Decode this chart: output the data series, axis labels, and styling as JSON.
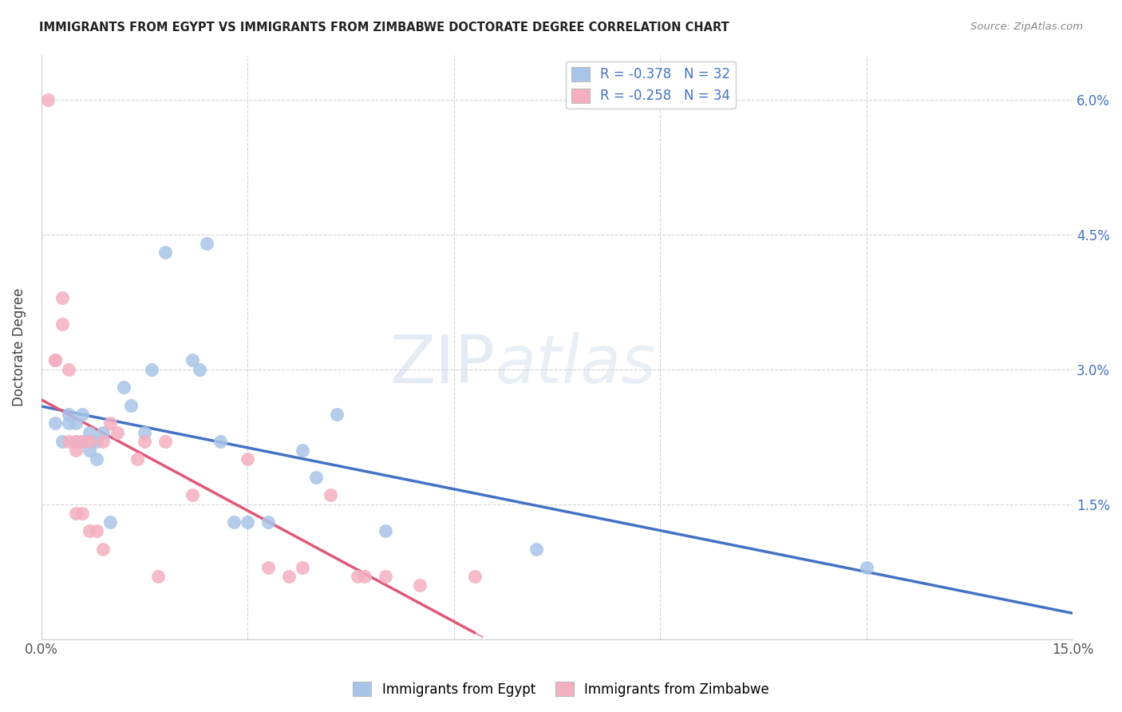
{
  "title": "IMMIGRANTS FROM EGYPT VS IMMIGRANTS FROM ZIMBABWE DOCTORATE DEGREE CORRELATION CHART",
  "source": "Source: ZipAtlas.com",
  "ylabel": "Doctorate Degree",
  "xlim": [
    0.0,
    0.15
  ],
  "ylim": [
    0.0,
    0.065
  ],
  "xticks": [
    0.0,
    0.03,
    0.06,
    0.09,
    0.12,
    0.15
  ],
  "xtick_labels": [
    "0.0%",
    "",
    "",
    "",
    "",
    "15.0%"
  ],
  "ytick_labels_right": [
    "",
    "1.5%",
    "3.0%",
    "4.5%",
    "6.0%"
  ],
  "yticks_right": [
    0.0,
    0.015,
    0.03,
    0.045,
    0.06
  ],
  "egypt_color": "#a8c4e8",
  "zimbabwe_color": "#f4afc0",
  "egypt_line_color": "#4472c4",
  "zimbabwe_line_color": "#e05878",
  "legend_egypt_R": "-0.378",
  "legend_egypt_N": "32",
  "legend_zimbabwe_R": "-0.258",
  "legend_zimbabwe_N": "34",
  "egypt_x": [
    0.002,
    0.003,
    0.004,
    0.004,
    0.005,
    0.005,
    0.006,
    0.006,
    0.007,
    0.007,
    0.008,
    0.008,
    0.009,
    0.01,
    0.012,
    0.013,
    0.015,
    0.016,
    0.018,
    0.022,
    0.023,
    0.024,
    0.026,
    0.028,
    0.03,
    0.033,
    0.038,
    0.04,
    0.043,
    0.05,
    0.072,
    0.12
  ],
  "egypt_y": [
    0.024,
    0.022,
    0.024,
    0.025,
    0.024,
    0.022,
    0.025,
    0.022,
    0.021,
    0.023,
    0.02,
    0.022,
    0.023,
    0.013,
    0.028,
    0.026,
    0.023,
    0.03,
    0.043,
    0.031,
    0.03,
    0.044,
    0.022,
    0.013,
    0.013,
    0.013,
    0.021,
    0.018,
    0.025,
    0.012,
    0.01,
    0.008
  ],
  "zimbabwe_x": [
    0.001,
    0.002,
    0.002,
    0.003,
    0.003,
    0.004,
    0.004,
    0.005,
    0.005,
    0.005,
    0.006,
    0.006,
    0.007,
    0.007,
    0.008,
    0.009,
    0.009,
    0.01,
    0.011,
    0.014,
    0.015,
    0.017,
    0.018,
    0.022,
    0.03,
    0.033,
    0.036,
    0.038,
    0.042,
    0.046,
    0.047,
    0.05,
    0.055,
    0.063
  ],
  "zimbabwe_y": [
    0.06,
    0.031,
    0.031,
    0.038,
    0.035,
    0.03,
    0.022,
    0.022,
    0.021,
    0.014,
    0.014,
    0.022,
    0.012,
    0.022,
    0.012,
    0.01,
    0.022,
    0.024,
    0.023,
    0.02,
    0.022,
    0.007,
    0.022,
    0.016,
    0.02,
    0.008,
    0.007,
    0.008,
    0.016,
    0.007,
    0.007,
    0.007,
    0.006,
    0.007
  ],
  "watermark_zip": "ZIP",
  "watermark_atlas": "atlas",
  "background_color": "#ffffff",
  "grid_color": "#d0d0d0",
  "title_color": "#222222",
  "axis_label_color": "#444444",
  "right_tick_color": "#4472c4",
  "source_color": "#888888"
}
